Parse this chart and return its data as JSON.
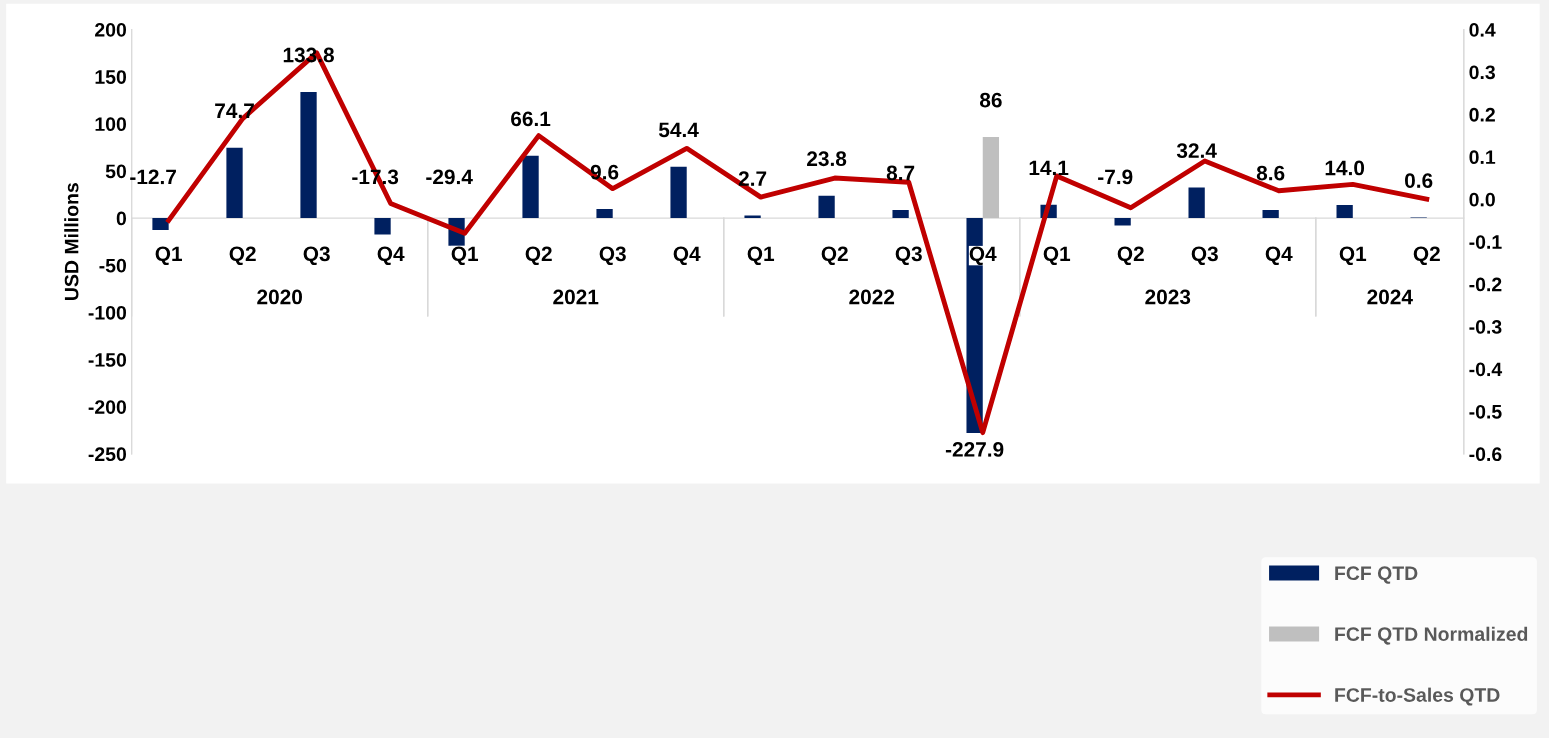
{
  "chart_data": {
    "type": "bar",
    "ylabel": "USD Millions",
    "categories": [
      "Q1",
      "Q2",
      "Q3",
      "Q4",
      "Q1",
      "Q2",
      "Q3",
      "Q4",
      "Q1",
      "Q2",
      "Q3",
      "Q4",
      "Q1",
      "Q2",
      "Q3",
      "Q4",
      "Q1",
      "Q2"
    ],
    "annotations": [
      "2020",
      "2021",
      "2022",
      "2023",
      "2024"
    ],
    "series": [
      {
        "name": "FCF QTD",
        "color": "#002060",
        "values": [
          -12.7,
          74.7,
          133.8,
          -17.3,
          -29.4,
          66.1,
          9.6,
          54.4,
          2.7,
          23.8,
          8.7,
          -227.9,
          14.1,
          -7.9,
          32.4,
          8.6,
          14.0,
          0.6
        ],
        "value_labels": [
          "-12.7",
          "74.7",
          "133.8",
          "-17.3",
          "-29.4",
          "66.1",
          "9.6",
          "54.4",
          "2.7",
          "23.8",
          "8.7",
          "-227.9",
          "14.1",
          "-7.9",
          "32.4",
          "8.6",
          "14.0",
          "0.6"
        ]
      },
      {
        "name": "FCF QTD Normalized",
        "color": "#bfbfbf",
        "values": [
          null,
          null,
          null,
          null,
          null,
          null,
          null,
          null,
          null,
          null,
          null,
          86,
          null,
          null,
          null,
          null,
          null,
          null
        ],
        "value_labels": [
          null,
          null,
          null,
          null,
          null,
          null,
          null,
          null,
          null,
          null,
          null,
          "86",
          null,
          null,
          null,
          null,
          null,
          null
        ]
      },
      {
        "name": "FCF-to-Sales QTD",
        "type": "line",
        "axis": "y2",
        "color": "#c00000",
        "values": [
          -0.05,
          0.19,
          0.345,
          -0.01,
          -0.08,
          0.15,
          0.025,
          0.12,
          0.005,
          0.05,
          0.04,
          -0.55,
          0.055,
          -0.02,
          0.09,
          0.02,
          0.035,
          0.0
        ]
      }
    ],
    "ylim": [
      -250,
      200
    ],
    "yticks": [
      -250,
      -200,
      -150,
      -100,
      -50,
      0,
      50,
      100,
      150,
      200
    ],
    "y2lim": [
      -0.6,
      0.4
    ],
    "y2ticks": [
      -0.6,
      -0.5,
      -0.4,
      -0.3,
      -0.2,
      -0.1,
      {
        "value": 0,
        "label": "0.0"
      },
      0.1,
      0.2,
      0.3,
      0.4
    ],
    "grid": false,
    "legend": "bottom right",
    "marker": "none",
    "line_style": "solid"
  }
}
